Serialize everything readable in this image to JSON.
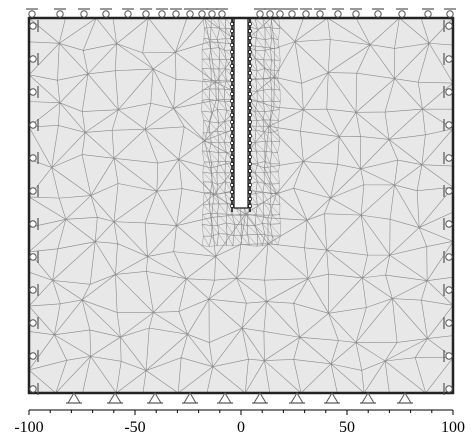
{
  "figure": {
    "description_free": true,
    "colors": {
      "domain_fill": "#e8e8e8",
      "mesh_line": "#8a8a8a",
      "border": "#222222",
      "support": "#555555",
      "pile_fill": "#ffffff"
    },
    "icon_names": [
      "roller-support-icon",
      "pin-support-icon",
      "pile-node-icon"
    ]
  },
  "chart_data": {
    "type": "diagram",
    "x_axis": {
      "range": [
        -100,
        100
      ],
      "ticks": [
        {
          "value": -100,
          "label": "-100"
        },
        {
          "value": -50,
          "label": "-50"
        },
        {
          "value": 0,
          "label": "0"
        },
        {
          "value": 50,
          "label": "50"
        },
        {
          "value": 100,
          "label": "100"
        }
      ],
      "minor_step": 10
    },
    "grid": false,
    "boundary_conditions": {
      "top": "roller",
      "left": "roller",
      "right": "roller",
      "bottom": "pin"
    }
  }
}
